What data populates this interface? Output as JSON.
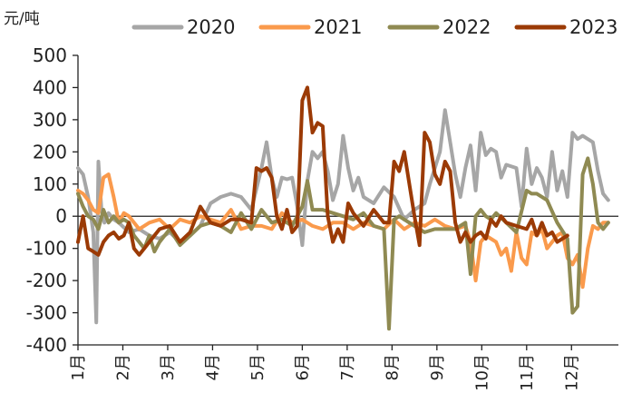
{
  "chart_data": {
    "type": "line",
    "unit_label": "元/吨",
    "yticks": [
      "500",
      "400",
      "300",
      "200",
      "100",
      "0",
      "-100",
      "-200",
      "-300",
      "-400"
    ],
    "ylim": [
      -400,
      500
    ],
    "xlim": [
      0,
      53
    ],
    "xticks": [
      {
        "label": "1月",
        "x": 0
      },
      {
        "label": "2月",
        "x": 4.4
      },
      {
        "label": "3月",
        "x": 8.8
      },
      {
        "label": "4月",
        "x": 13.2
      },
      {
        "label": "5月",
        "x": 17.6
      },
      {
        "label": "6月",
        "x": 22.0
      },
      {
        "label": "7月",
        "x": 26.4
      },
      {
        "label": "8月",
        "x": 30.8
      },
      {
        "label": "9月",
        "x": 35.2
      },
      {
        "label": "10月",
        "x": 39.6
      },
      {
        "label": "11月",
        "x": 44.0
      },
      {
        "label": "12月",
        "x": 48.4
      }
    ],
    "legend_position": "top",
    "series": [
      {
        "name": "2020",
        "color": "#a6a6a6",
        "x": [
          0,
          0.5,
          1,
          1.5,
          1.8,
          2,
          2.3,
          2.6,
          3,
          3.5,
          4,
          5,
          6,
          7,
          8,
          9,
          10,
          11,
          12,
          13,
          14,
          15,
          16,
          17,
          18,
          18.5,
          19,
          19.5,
          20,
          20.5,
          21,
          21.5,
          22,
          22.5,
          23,
          23.5,
          24,
          24.5,
          25,
          25.5,
          26,
          26.5,
          27,
          27.5,
          28,
          29,
          30,
          31,
          32,
          33,
          34,
          34.5,
          35,
          35.5,
          36,
          36.5,
          37,
          37.5,
          38,
          38.5,
          39,
          39.5,
          40,
          40.5,
          41,
          41.5,
          42,
          43,
          43.5,
          44,
          44.5,
          45,
          45.5,
          46,
          46.5,
          47,
          47.5,
          48,
          48.5,
          49,
          49.5,
          50,
          50.5,
          51,
          51.5,
          52
        ],
        "y": [
          150,
          130,
          60,
          -50,
          -330,
          170,
          20,
          -20,
          10,
          -10,
          -20,
          -50,
          -40,
          -60,
          -70,
          -50,
          -80,
          -60,
          -30,
          40,
          60,
          70,
          60,
          20,
          150,
          230,
          120,
          60,
          120,
          115,
          120,
          30,
          -90,
          110,
          200,
          180,
          200,
          140,
          50,
          100,
          250,
          150,
          80,
          120,
          60,
          40,
          90,
          60,
          -10,
          20,
          40,
          100,
          150,
          200,
          330,
          230,
          130,
          60,
          150,
          220,
          80,
          260,
          190,
          210,
          200,
          120,
          160,
          150,
          30,
          210,
          100,
          150,
          120,
          60,
          200,
          80,
          140,
          60,
          260,
          240,
          250,
          240,
          230,
          140,
          70,
          50
        ]
      },
      {
        "name": "2021",
        "color": "#fa9a4c",
        "x": [
          0,
          0.5,
          1,
          1.5,
          2,
          2.5,
          3,
          3.5,
          4,
          4.5,
          5,
          6,
          7,
          8,
          9,
          10,
          11,
          12,
          13,
          14,
          15,
          16,
          17,
          18,
          19,
          20,
          21,
          22,
          23,
          24,
          25,
          26,
          27,
          28,
          29,
          30,
          31,
          32,
          33,
          34,
          35,
          36,
          37,
          38,
          38.5,
          39,
          39.5,
          40,
          40.5,
          41,
          41.5,
          42,
          42.5,
          43,
          43.5,
          44,
          44.5,
          45,
          45.5,
          46,
          46.5,
          47,
          47.5,
          48,
          48.5,
          49,
          49.5,
          50,
          50.5,
          51,
          51.5,
          52
        ],
        "y": [
          80,
          70,
          50,
          20,
          10,
          120,
          130,
          60,
          -20,
          10,
          0,
          -40,
          -20,
          -10,
          -40,
          -10,
          -20,
          0,
          -10,
          -20,
          20,
          -40,
          -30,
          -30,
          -40,
          10,
          -20,
          -10,
          -30,
          -40,
          -20,
          -20,
          -40,
          -20,
          -30,
          -40,
          -10,
          -40,
          -20,
          -30,
          -10,
          -30,
          -40,
          -30,
          -80,
          -200,
          -80,
          -60,
          -70,
          -80,
          -120,
          -100,
          -170,
          -50,
          -130,
          -150,
          -50,
          -60,
          -40,
          -100,
          -80,
          -60,
          -50,
          -130,
          -150,
          -120,
          -220,
          -100,
          -30,
          -40,
          -20,
          -20
        ]
      },
      {
        "name": "2022",
        "color": "#8f8a52",
        "x": [
          0,
          0.5,
          1,
          1.5,
          2,
          2.5,
          3,
          3.5,
          4,
          4.5,
          5,
          5.5,
          6,
          6.5,
          7,
          7.5,
          8,
          9,
          10,
          11,
          12,
          13,
          14,
          15,
          16,
          17,
          18,
          19,
          20,
          21,
          22,
          22.5,
          23,
          24,
          25,
          26,
          27,
          28,
          29,
          30,
          30.5,
          31,
          31.5,
          32,
          33,
          34,
          35,
          36,
          37,
          38,
          38.5,
          39,
          39.5,
          40,
          40.5,
          41,
          42,
          43,
          44,
          44.5,
          45,
          46,
          47,
          48,
          48.5,
          49,
          49.5,
          50,
          50.5,
          51,
          51.5,
          52
        ],
        "y": [
          70,
          30,
          0,
          -10,
          -40,
          20,
          -20,
          0,
          -20,
          -10,
          -20,
          -60,
          -80,
          -100,
          -60,
          -110,
          -80,
          -40,
          -90,
          -60,
          -30,
          -20,
          -30,
          -50,
          10,
          -40,
          20,
          -20,
          -10,
          -30,
          30,
          110,
          20,
          20,
          10,
          0,
          -10,
          10,
          -30,
          -40,
          -350,
          -10,
          0,
          -10,
          -30,
          -50,
          -40,
          -40,
          -40,
          -20,
          -180,
          0,
          20,
          0,
          -10,
          10,
          -20,
          -50,
          80,
          70,
          70,
          50,
          -20,
          -70,
          -300,
          -280,
          130,
          180,
          100,
          -20,
          -40,
          -20
        ]
      },
      {
        "name": "2023",
        "color": "#9b3a05",
        "x": [
          0,
          0.5,
          1,
          1.5,
          2,
          2.5,
          3,
          3.5,
          4,
          4.5,
          5,
          5.5,
          6,
          6.5,
          7,
          7.5,
          8,
          9,
          10,
          11,
          12,
          13,
          14,
          15,
          16,
          17,
          17.5,
          18,
          18.5,
          19,
          19.5,
          20,
          20.5,
          21,
          21.5,
          22,
          22.5,
          23,
          23.5,
          24,
          24.5,
          25,
          25.5,
          26,
          26.5,
          27,
          28,
          29,
          30,
          30.5,
          31,
          31.5,
          32,
          33,
          33.5,
          34,
          34.5,
          35,
          35.5,
          36,
          36.5,
          37,
          37.5,
          38,
          38.5,
          39,
          39.5,
          40,
          40.5,
          41,
          41.5,
          42,
          43,
          44,
          44.5,
          45,
          45.5,
          46,
          46.5,
          47,
          47.5,
          48
        ],
        "y": [
          -80,
          0,
          -100,
          -110,
          -120,
          -80,
          -60,
          -50,
          -70,
          -60,
          -20,
          -100,
          -120,
          -100,
          -80,
          -60,
          -40,
          -30,
          -80,
          -50,
          30,
          -20,
          -30,
          -10,
          -10,
          -20,
          150,
          140,
          150,
          120,
          0,
          -40,
          20,
          -50,
          -30,
          360,
          400,
          260,
          290,
          280,
          0,
          -80,
          -40,
          -80,
          40,
          10,
          -30,
          20,
          -20,
          -20,
          170,
          140,
          200,
          0,
          -90,
          260,
          230,
          130,
          100,
          170,
          140,
          -20,
          -80,
          -50,
          -80,
          -60,
          -50,
          -70,
          -10,
          -30,
          0,
          -20,
          -30,
          -40,
          -10,
          -60,
          -20,
          -60,
          -50,
          -80,
          -70,
          -60
        ]
      }
    ]
  }
}
